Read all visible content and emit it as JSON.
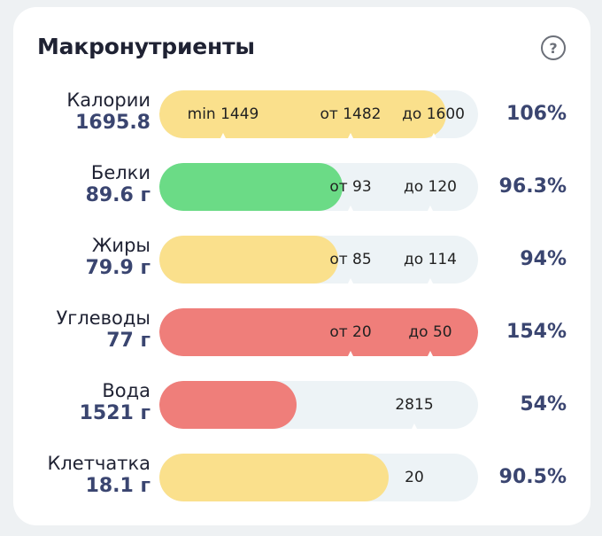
{
  "title": "Макронутриенты",
  "help_symbol": "?",
  "colors": {
    "yellow": "#fae08c",
    "green": "#6bdb86",
    "red": "#ef7e7a",
    "track": "#edf3f6",
    "accent_text": "#3a4570"
  },
  "rows": [
    {
      "name": "Калории",
      "value": "1695.8",
      "percent": "106%",
      "fill_fraction": 0.9,
      "color": "yellow",
      "marks": [
        {
          "label": "min 1449",
          "pos": 0.2,
          "tick": 0.2
        },
        {
          "label": "от 1482",
          "pos": 0.6,
          "tick": 0.6
        },
        {
          "label": "до 1600",
          "pos": 0.86,
          "tick": 0.86
        }
      ]
    },
    {
      "name": "Белки",
      "value": "89.6 г",
      "percent": "96.3%",
      "fill_fraction": 0.575,
      "color": "green",
      "marks": [
        {
          "label": "от 93",
          "pos": 0.6,
          "tick": 0.6
        },
        {
          "label": "до 120",
          "pos": 0.85,
          "tick": 0.85
        }
      ]
    },
    {
      "name": "Жиры",
      "value": "79.9 г",
      "percent": "94%",
      "fill_fraction": 0.56,
      "color": "yellow",
      "marks": [
        {
          "label": "от 85",
          "pos": 0.6,
          "tick": 0.6
        },
        {
          "label": "до 114",
          "pos": 0.85,
          "tick": 0.85
        }
      ]
    },
    {
      "name": "Углеводы",
      "value": "77 г",
      "percent": "154%",
      "fill_fraction": 1.0,
      "color": "red",
      "marks": [
        {
          "label": "от 20",
          "pos": 0.6,
          "tick": 0.6
        },
        {
          "label": "до 50",
          "pos": 0.85,
          "tick": 0.85
        }
      ]
    },
    {
      "name": "Вода",
      "value": "1521 г",
      "percent": "54%",
      "fill_fraction": 0.43,
      "color": "red",
      "marks": [
        {
          "label": "2815",
          "pos": 0.8,
          "tick": 0.8
        }
      ]
    },
    {
      "name": "Клетчатка",
      "value": "18.1 г",
      "percent": "90.5%",
      "fill_fraction": 0.72,
      "color": "yellow",
      "marks": [
        {
          "label": "20",
          "pos": 0.8,
          "tick": null
        }
      ]
    }
  ]
}
